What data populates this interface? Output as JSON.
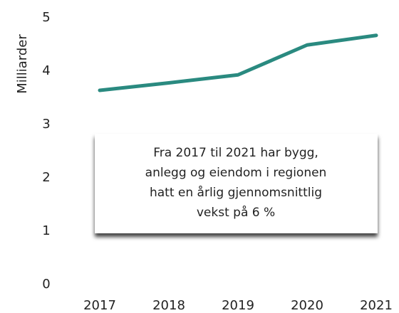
{
  "chart_data": {
    "type": "line",
    "y_label": "Milliarder",
    "categories": [
      "2017",
      "2018",
      "2019",
      "2020",
      "2021"
    ],
    "values": [
      3.64,
      3.78,
      3.93,
      4.49,
      4.67
    ],
    "color": "#2a8a80",
    "ylim": [
      0,
      5
    ],
    "yticks": [
      0,
      1,
      2,
      3,
      4,
      5
    ],
    "grid": false,
    "annotation": [
      "Fra 2017 til 2021 har bygg,",
      "anlegg og eiendom i regionen",
      "hatt en årlig gjennomsnittlig",
      "vekst på 6 %"
    ]
  }
}
